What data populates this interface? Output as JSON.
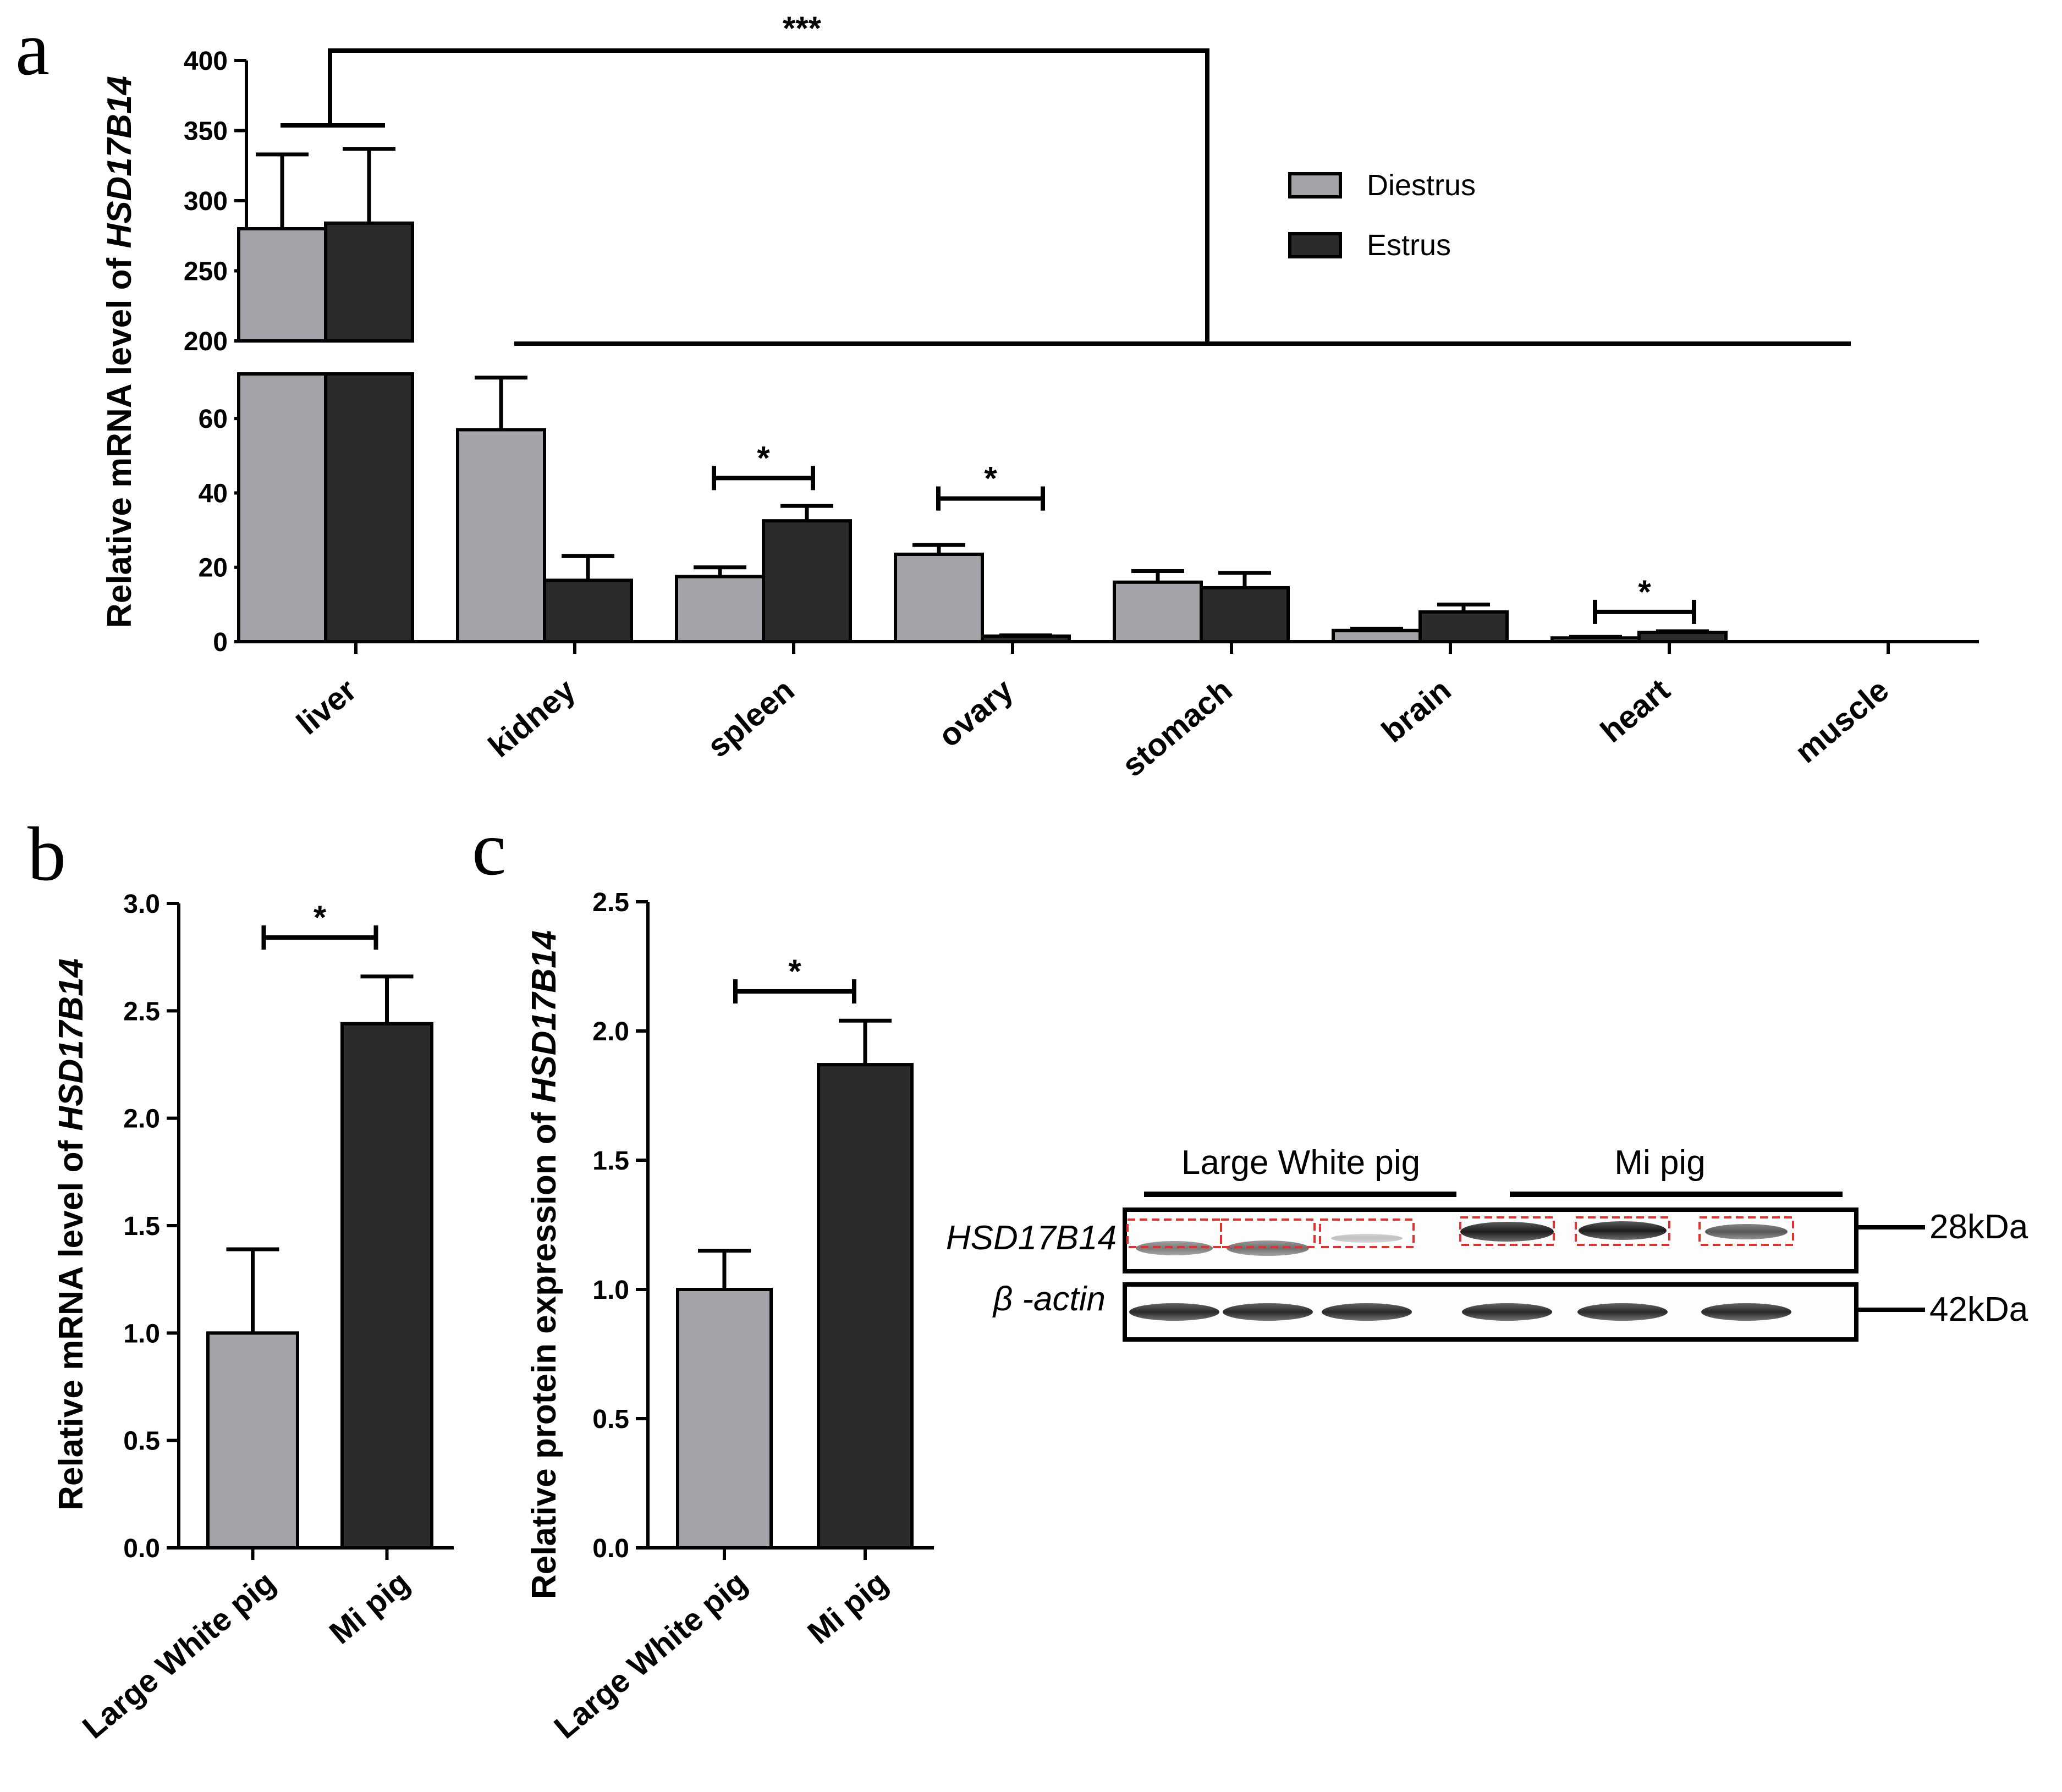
{
  "colors": {
    "diestrus": "#a5a3aa",
    "estrus": "#2b2b2b",
    "large_white": "#a5a3aa",
    "mi": "#2b2b2b"
  },
  "chart_data": [
    {
      "panel": "a",
      "type": "bar",
      "ylabel_prefix": "Relative mRNA level of ",
      "ylabel_gene": "HSD17B14",
      "categories": [
        "liver",
        "kidney",
        "spleen",
        "ovary",
        "stomach",
        "brain",
        "heart",
        "muscle"
      ],
      "series": [
        {
          "name": "Diestrus",
          "values": [
            280,
            57,
            17.5,
            23.5,
            16,
            3,
            1,
            0
          ],
          "errors": [
            53,
            14,
            2.5,
            2.5,
            3,
            0.5,
            0.3,
            0
          ]
        },
        {
          "name": "Estrus",
          "values": [
            284,
            16.5,
            32.5,
            1.5,
            14.5,
            8,
            2.5,
            0
          ],
          "errors": [
            53,
            6.5,
            4,
            0.2,
            4,
            2,
            0.3,
            0
          ]
        }
      ],
      "y_break": {
        "lower_range": [
          0,
          72
        ],
        "upper_range": [
          200,
          400
        ]
      },
      "yticks_lower": [
        0,
        20,
        40,
        60
      ],
      "yticks_upper": [
        200,
        250,
        300,
        350,
        400
      ],
      "yticklabels_lower": [
        "0",
        "20",
        "40",
        "60"
      ],
      "yticklabels_upper": [
        "200",
        "250",
        "300",
        "350",
        "400"
      ],
      "significance": [
        {
          "between": "liver vs other tissues",
          "label": "***"
        },
        {
          "category": "spleen",
          "label": "*"
        },
        {
          "category": "ovary",
          "label": "*"
        },
        {
          "category": "heart",
          "label": "*"
        }
      ],
      "legend_position": "top-right"
    },
    {
      "panel": "b",
      "type": "bar",
      "ylabel_prefix": "Relative mRNA level of ",
      "ylabel_gene": "HSD17B14",
      "categories": [
        "Large White pig",
        "Mi pig"
      ],
      "values": [
        1.0,
        2.44
      ],
      "errors": [
        0.39,
        0.22
      ],
      "ylim": [
        0,
        3.0
      ],
      "yticks": [
        0,
        0.5,
        1.0,
        1.5,
        2.0,
        2.5,
        3.0
      ],
      "yticklabels": [
        "0.0",
        "0.5",
        "1.0",
        "1.5",
        "2.0",
        "2.5",
        "3.0"
      ],
      "significance": [
        {
          "label": "*"
        }
      ]
    },
    {
      "panel": "c",
      "type": "bar",
      "ylabel_prefix": "Relative protein expression of ",
      "ylabel_gene": "HSD17B14",
      "categories": [
        "Large White pig",
        "Mi pig"
      ],
      "values": [
        1.0,
        1.87
      ],
      "errors": [
        0.15,
        0.17
      ],
      "ylim": [
        0,
        2.5
      ],
      "yticks": [
        0,
        0.5,
        1.0,
        1.5,
        2.0,
        2.5
      ],
      "yticklabels": [
        "0.0",
        "0.5",
        "1.0",
        "1.5",
        "2.0",
        "2.5"
      ],
      "significance": [
        {
          "label": "*"
        }
      ]
    }
  ],
  "panel_labels": {
    "a": "a",
    "b": "b",
    "c": "c"
  },
  "blot": {
    "group_left": "Large White pig",
    "group_right": "Mi pig",
    "row1_label": "HSD17B14",
    "row2_label": "β -actin",
    "row1_size": "28kDa",
    "row2_size": "42kDa"
  }
}
